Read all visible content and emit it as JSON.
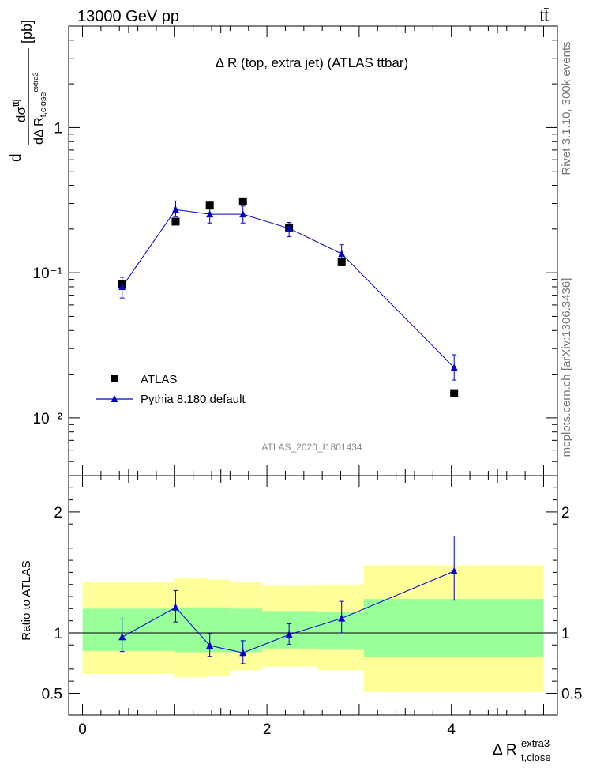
{
  "header": {
    "left_label": "13000 GeV pp",
    "right_label": "tt̄"
  },
  "side_labels": {
    "rivet": "Rivet 3.1.10,  300k events",
    "mcplots": "mcplots.cern.ch [arXiv:1306.3436]"
  },
  "colors": {
    "atlas": "#000000",
    "pythia": "#0000cc",
    "band_outer": "#ffff99",
    "band_inner": "#99ff99",
    "watermark": "#888888"
  },
  "chart_data": [
    {
      "type": "scatter",
      "panel": "main",
      "title": "Δ R (top, extra jet) (ATLAS ttbar)",
      "ylabel": "dσttj / dΔ R t,close extra3 [pb]",
      "yscale": "log",
      "ylim": [
        0.004,
        5
      ],
      "xlim": [
        -0.15,
        5.15
      ],
      "y_ticks": [
        {
          "value": 1,
          "label": "1"
        },
        {
          "value": 0.1,
          "label": "10⁻¹"
        },
        {
          "value": 0.01,
          "label": "10⁻²"
        }
      ],
      "watermark": "ATLAS_2020_I1801434",
      "legend": {
        "atlas_label": "ATLAS",
        "pythia_label": "Pythia 8.180 default",
        "placement": "bottom-left"
      },
      "series": [
        {
          "name": "ATLAS",
          "marker": "square",
          "x": [
            0.43,
            1.01,
            1.38,
            1.74,
            2.24,
            2.81,
            4.03
          ],
          "y": [
            0.083,
            0.225,
            0.29,
            0.31,
            0.205,
            0.118,
            0.0148
          ]
        },
        {
          "name": "Pythia 8.180 default",
          "marker": "triangle",
          "x": [
            0.43,
            1.01,
            1.38,
            1.74,
            2.24,
            2.81,
            4.03
          ],
          "y": [
            0.08,
            0.272,
            0.253,
            0.253,
            0.202,
            0.135,
            0.0222
          ],
          "err_lo": [
            0.013,
            0.029,
            0.033,
            0.033,
            0.025,
            0.019,
            0.004
          ],
          "err_hi": [
            0.013,
            0.04,
            0.035,
            0.035,
            0.02,
            0.021,
            0.005
          ]
        }
      ]
    },
    {
      "type": "line",
      "panel": "ratio",
      "ylabel": "Ratio to ATLAS",
      "xlabel": "Δ R t,close extra3",
      "ylim": [
        0.32,
        2.3
      ],
      "xlim": [
        -0.15,
        5.15
      ],
      "x_ticks": [
        {
          "value": 0,
          "label": "0"
        },
        {
          "value": 2,
          "label": "2"
        },
        {
          "value": 4,
          "label": "4"
        }
      ],
      "y_ticks": [
        {
          "value": 2,
          "label": "2"
        },
        {
          "value": 1,
          "label": "1"
        },
        {
          "value": 0.5,
          "label": "0.5"
        }
      ],
      "bands": {
        "bin_edges": [
          0.0,
          1.0,
          1.35,
          1.6,
          1.95,
          2.55,
          3.05,
          5.0
        ],
        "outer_lo": [
          0.66,
          0.63,
          0.64,
          0.69,
          0.72,
          0.69,
          0.51
        ],
        "outer_hi": [
          1.42,
          1.45,
          1.44,
          1.42,
          1.39,
          1.4,
          1.56
        ],
        "inner_lo": [
          0.85,
          0.84,
          0.84,
          0.84,
          0.87,
          0.86,
          0.8
        ],
        "inner_hi": [
          1.2,
          1.21,
          1.21,
          1.2,
          1.18,
          1.17,
          1.28
        ]
      },
      "series": [
        {
          "name": "Pythia 8.180 default",
          "x": [
            0.43,
            1.01,
            1.38,
            1.74,
            2.24,
            2.81,
            4.03
          ],
          "y": [
            0.965,
            1.21,
            0.895,
            0.835,
            0.985,
            1.12,
            1.51
          ],
          "err_lo": [
            0.12,
            0.12,
            0.09,
            0.09,
            0.08,
            0.12,
            0.24
          ],
          "err_hi": [
            0.15,
            0.14,
            0.1,
            0.1,
            0.09,
            0.14,
            0.29
          ]
        }
      ]
    }
  ]
}
